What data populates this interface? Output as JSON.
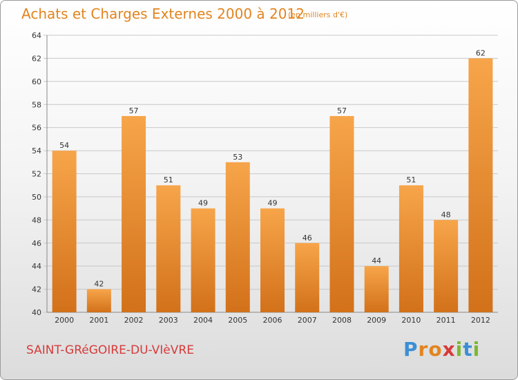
{
  "header": {
    "title": "Achats et Charges Externes 2000 à 2012",
    "subtitle": "(en milliers d'€)"
  },
  "footer": {
    "commune": "SAINT-GRéGOIRE-DU-VIèVRE",
    "logo_letters": [
      "P",
      "r",
      "o",
      "x",
      "i",
      "t",
      "i"
    ],
    "logo_colors": [
      "#3a8fd6",
      "#e2841f",
      "#e2841f",
      "#d63a3a",
      "#7cb82f",
      "#3a8fd6",
      "#7cb82f"
    ]
  },
  "colors": {
    "bar_top": "#f7a54a",
    "bar_bottom": "#d2711a",
    "grid": "#c8c8c8",
    "axis_text": "#333333"
  },
  "chart_data": {
    "type": "bar",
    "categories": [
      "2000",
      "2001",
      "2002",
      "2003",
      "2004",
      "2005",
      "2006",
      "2007",
      "2008",
      "2009",
      "2010",
      "2011",
      "2012"
    ],
    "values": [
      54,
      42,
      57,
      51,
      49,
      53,
      49,
      46,
      57,
      44,
      51,
      48,
      62
    ],
    "title": "Achats et Charges Externes 2000 à 2012",
    "xlabel": "",
    "ylabel": "",
    "ylim": [
      40,
      64
    ],
    "yticks": [
      40,
      42,
      44,
      46,
      48,
      50,
      52,
      54,
      56,
      58,
      60,
      62,
      64
    ],
    "grid": true,
    "data_labels": true
  }
}
